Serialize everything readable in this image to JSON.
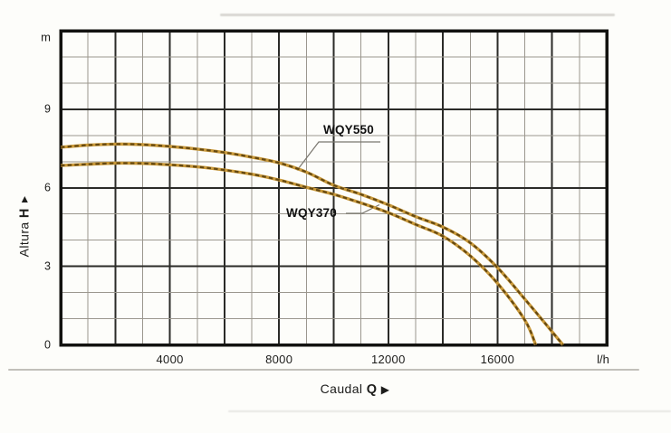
{
  "chart_data": {
    "type": "line",
    "title": "",
    "x_axis": {
      "label": "Caudal",
      "symbol": "Q",
      "arrow": "▶",
      "unit": "l/h",
      "min": 0,
      "max": 20000,
      "gridline_every": 1000,
      "major_every": 2000,
      "ticks": [
        {
          "label": "4000",
          "value": 4000
        },
        {
          "label": "8000",
          "value": 8000
        },
        {
          "label": "12000",
          "value": 12000
        },
        {
          "label": "16000",
          "value": 16000
        }
      ]
    },
    "y_axis": {
      "label": "Altura",
      "symbol": "H",
      "arrow": "▲",
      "unit": "m",
      "min": 0,
      "max": 12,
      "gridline_every": 1,
      "major_every": 3,
      "ticks": [
        {
          "label": "9",
          "value": 9
        },
        {
          "label": "6",
          "value": 6
        },
        {
          "label": "3",
          "value": 3
        },
        {
          "label": "0",
          "value": 0
        }
      ]
    },
    "grid": true,
    "legend_position": "inline-curve-annotations",
    "series": [
      {
        "name": "WQY550",
        "color": "#c9993a",
        "dash_color": "#52390b",
        "points": [
          [
            0,
            7.55
          ],
          [
            1000,
            7.63
          ],
          [
            2000,
            7.67
          ],
          [
            3000,
            7.65
          ],
          [
            4000,
            7.58
          ],
          [
            5000,
            7.48
          ],
          [
            6000,
            7.35
          ],
          [
            7000,
            7.17
          ],
          [
            8000,
            6.95
          ],
          [
            9000,
            6.6
          ],
          [
            10000,
            6.1
          ],
          [
            11000,
            5.75
          ],
          [
            12000,
            5.35
          ],
          [
            13000,
            4.9
          ],
          [
            14000,
            4.5
          ],
          [
            15000,
            3.9
          ],
          [
            16000,
            2.95
          ],
          [
            17000,
            1.75
          ],
          [
            18000,
            0.5
          ],
          [
            18400,
            0
          ]
        ]
      },
      {
        "name": "WQY370",
        "color": "#c9993a",
        "dash_color": "#52390b",
        "points": [
          [
            0,
            6.85
          ],
          [
            1000,
            6.9
          ],
          [
            2000,
            6.94
          ],
          [
            3000,
            6.93
          ],
          [
            4000,
            6.88
          ],
          [
            5000,
            6.8
          ],
          [
            6000,
            6.68
          ],
          [
            7000,
            6.52
          ],
          [
            8000,
            6.3
          ],
          [
            9000,
            6.02
          ],
          [
            10000,
            5.75
          ],
          [
            11000,
            5.42
          ],
          [
            12000,
            5.05
          ],
          [
            13000,
            4.6
          ],
          [
            14000,
            4.15
          ],
          [
            15000,
            3.4
          ],
          [
            16000,
            2.35
          ],
          [
            17000,
            0.95
          ],
          [
            17400,
            0
          ]
        ]
      }
    ],
    "colors": {
      "grid_minor": "#9b978e",
      "grid_major": "#2b2b28",
      "border": "#121210",
      "text": "#1c1c1a",
      "leader": "#7a776f"
    }
  }
}
